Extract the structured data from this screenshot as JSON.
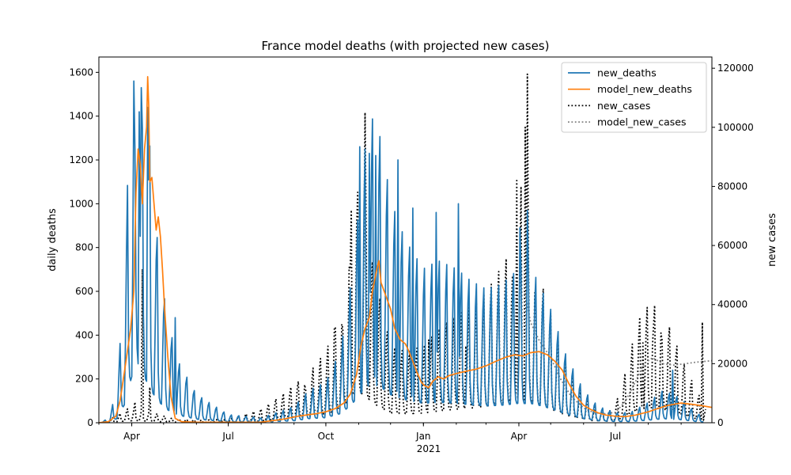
{
  "chart_data": {
    "type": "line",
    "title": "France model deaths (with projected new cases)",
    "xlabel_sub": "2021",
    "ylabel_left": "daily deaths",
    "ylabel_right": "new cases",
    "x_range": [
      "2020-03-01",
      "2021-09-30"
    ],
    "ylim_left": [
      0,
      1670
    ],
    "ylim_right": [
      0,
      123800
    ],
    "yticks_left": [
      0,
      200,
      400,
      600,
      800,
      1000,
      1200,
      1400,
      1600
    ],
    "yticks_right": [
      0,
      20000,
      40000,
      60000,
      80000,
      100000,
      120000
    ],
    "xticks": [
      {
        "date": "2020-04-01",
        "label": "Apr"
      },
      {
        "date": "2020-07-01",
        "label": "Jul"
      },
      {
        "date": "2020-10-01",
        "label": "Oct"
      },
      {
        "date": "2021-01-01",
        "label": "Jan"
      },
      {
        "date": "2021-04-01",
        "label": "Apr"
      },
      {
        "date": "2021-07-01",
        "label": "Jul"
      }
    ],
    "grid": false,
    "legend_position": "top-right",
    "series": [
      {
        "name": "new_deaths",
        "axis": "left",
        "color": "#1f77b4",
        "style": "solid",
        "kind": "oscillating",
        "start": "2020-03-01",
        "end": "2021-09-22",
        "profile": [
          [
            "2020-03-01",
            0
          ],
          [
            "2020-03-10",
            10
          ],
          [
            "2020-03-18",
            80
          ],
          [
            "2020-03-25",
            350
          ],
          [
            "2020-04-01",
            900
          ],
          [
            "2020-04-06",
            1200
          ],
          [
            "2020-04-10",
            1000
          ],
          [
            "2020-04-14",
            850
          ],
          [
            "2020-04-20",
            600
          ],
          [
            "2020-04-27",
            400
          ],
          [
            "2020-05-05",
            250
          ],
          [
            "2020-05-15",
            150
          ],
          [
            "2020-06-01",
            70
          ],
          [
            "2020-07-01",
            20
          ],
          [
            "2020-08-01",
            12
          ],
          [
            "2020-09-01",
            40
          ],
          [
            "2020-09-15",
            80
          ],
          [
            "2020-10-01",
            100
          ],
          [
            "2020-10-15",
            180
          ],
          [
            "2020-10-25",
            350
          ],
          [
            "2020-11-02",
            550
          ],
          [
            "2020-11-08",
            700
          ],
          [
            "2020-11-14",
            750
          ],
          [
            "2020-11-22",
            700
          ],
          [
            "2020-12-01",
            550
          ],
          [
            "2020-12-15",
            450
          ],
          [
            "2021-01-01",
            380
          ],
          [
            "2021-01-15",
            400
          ],
          [
            "2021-02-01",
            380
          ],
          [
            "2021-02-15",
            350
          ],
          [
            "2021-03-01",
            330
          ],
          [
            "2021-03-15",
            340
          ],
          [
            "2021-04-01",
            380
          ],
          [
            "2021-04-15",
            370
          ],
          [
            "2021-05-01",
            280
          ],
          [
            "2021-05-15",
            170
          ],
          [
            "2021-06-01",
            80
          ],
          [
            "2021-06-15",
            40
          ],
          [
            "2021-07-01",
            25
          ],
          [
            "2021-07-15",
            25
          ],
          [
            "2021-08-01",
            50
          ],
          [
            "2021-08-15",
            80
          ],
          [
            "2021-09-01",
            60
          ],
          [
            "2021-09-15",
            25
          ],
          [
            "2021-09-22",
            15
          ]
        ],
        "oscillation": 0.85,
        "spikes": [
          [
            "2020-04-04",
            1250
          ],
          [
            "2020-04-08",
            1420
          ],
          [
            "2020-04-11",
            1340
          ],
          [
            "2020-04-16",
            1440
          ],
          [
            "2020-05-12",
            480
          ],
          [
            "2020-11-02",
            1260
          ],
          [
            "2020-11-11",
            1230
          ],
          [
            "2020-11-17",
            1220
          ],
          [
            "2020-12-08",
            1200
          ],
          [
            "2020-12-22",
            980
          ],
          [
            "2021-01-13",
            960
          ],
          [
            "2021-02-03",
            1000
          ],
          [
            "2021-04-02",
            890
          ],
          [
            "2021-04-09",
            970
          ],
          [
            "2021-08-24",
            240
          ]
        ]
      },
      {
        "name": "model_new_deaths",
        "axis": "left",
        "color": "#ff7f0e",
        "style": "solid",
        "kind": "points",
        "points": [
          [
            "2020-03-01",
            0
          ],
          [
            "2020-03-10",
            5
          ],
          [
            "2020-03-17",
            30
          ],
          [
            "2020-03-21",
            100
          ],
          [
            "2020-03-25",
            230
          ],
          [
            "2020-03-28",
            330
          ],
          [
            "2020-03-31",
            430
          ],
          [
            "2020-04-03",
            600
          ],
          [
            "2020-04-05",
            1050
          ],
          [
            "2020-04-07",
            1250
          ],
          [
            "2020-04-09",
            1180
          ],
          [
            "2020-04-11",
            1000
          ],
          [
            "2020-04-13",
            1250
          ],
          [
            "2020-04-15",
            1350
          ],
          [
            "2020-04-16",
            1580
          ],
          [
            "2020-04-17",
            1450
          ],
          [
            "2020-04-18",
            1100
          ],
          [
            "2020-04-20",
            1120
          ],
          [
            "2020-04-22",
            1000
          ],
          [
            "2020-04-24",
            880
          ],
          [
            "2020-04-26",
            940
          ],
          [
            "2020-04-28",
            850
          ],
          [
            "2020-04-30",
            700
          ],
          [
            "2020-05-02",
            520
          ],
          [
            "2020-05-05",
            300
          ],
          [
            "2020-05-08",
            120
          ],
          [
            "2020-05-12",
            20
          ],
          [
            "2020-05-18",
            5
          ],
          [
            "2020-06-01",
            2
          ],
          [
            "2020-07-01",
            2
          ],
          [
            "2020-08-01",
            3
          ],
          [
            "2020-08-20",
            15
          ],
          [
            "2020-09-05",
            30
          ],
          [
            "2020-09-20",
            40
          ],
          [
            "2020-10-01",
            50
          ],
          [
            "2020-10-10",
            65
          ],
          [
            "2020-10-18",
            90
          ],
          [
            "2020-10-24",
            130
          ],
          [
            "2020-10-30",
            220
          ],
          [
            "2020-11-03",
            350
          ],
          [
            "2020-11-07",
            430
          ],
          [
            "2020-11-11",
            480
          ],
          [
            "2020-11-14",
            600
          ],
          [
            "2020-11-16",
            650
          ],
          [
            "2020-11-18",
            700
          ],
          [
            "2020-11-20",
            740
          ],
          [
            "2020-11-22",
            640
          ],
          [
            "2020-11-25",
            600
          ],
          [
            "2020-11-28",
            560
          ],
          [
            "2020-12-01",
            520
          ],
          [
            "2020-12-05",
            430
          ],
          [
            "2020-12-10",
            380
          ],
          [
            "2020-12-15",
            360
          ],
          [
            "2020-12-18",
            330
          ],
          [
            "2020-12-22",
            280
          ],
          [
            "2020-12-26",
            230
          ],
          [
            "2020-12-30",
            185
          ],
          [
            "2021-01-02",
            170
          ],
          [
            "2021-01-06",
            160
          ],
          [
            "2021-01-10",
            190
          ],
          [
            "2021-01-15",
            210
          ],
          [
            "2021-01-20",
            200
          ],
          [
            "2021-01-25",
            215
          ],
          [
            "2021-02-01",
            225
          ],
          [
            "2021-02-10",
            235
          ],
          [
            "2021-02-20",
            245
          ],
          [
            "2021-03-01",
            260
          ],
          [
            "2021-03-10",
            280
          ],
          [
            "2021-03-20",
            300
          ],
          [
            "2021-03-28",
            310
          ],
          [
            "2021-04-05",
            305
          ],
          [
            "2021-04-12",
            320
          ],
          [
            "2021-04-20",
            325
          ],
          [
            "2021-04-28",
            310
          ],
          [
            "2021-05-05",
            280
          ],
          [
            "2021-05-12",
            240
          ],
          [
            "2021-05-18",
            180
          ],
          [
            "2021-05-25",
            120
          ],
          [
            "2021-06-01",
            80
          ],
          [
            "2021-06-08",
            60
          ],
          [
            "2021-06-15",
            45
          ],
          [
            "2021-06-22",
            35
          ],
          [
            "2021-07-01",
            30
          ],
          [
            "2021-07-10",
            28
          ],
          [
            "2021-07-20",
            35
          ],
          [
            "2021-08-01",
            50
          ],
          [
            "2021-08-10",
            65
          ],
          [
            "2021-08-20",
            80
          ],
          [
            "2021-09-01",
            90
          ],
          [
            "2021-09-10",
            85
          ],
          [
            "2021-09-20",
            78
          ],
          [
            "2021-09-30",
            70
          ]
        ]
      },
      {
        "name": "new_cases",
        "axis": "right",
        "color": "#000000",
        "style": "dotted",
        "kind": "oscillating",
        "start": "2020-03-01",
        "end": "2021-09-24",
        "profile": [
          [
            "2020-03-01",
            0
          ],
          [
            "2020-03-15",
            1000
          ],
          [
            "2020-04-01",
            3000
          ],
          [
            "2020-04-20",
            2000
          ],
          [
            "2020-05-10",
            800
          ],
          [
            "2020-06-01",
            500
          ],
          [
            "2020-07-01",
            600
          ],
          [
            "2020-08-01",
            2500
          ],
          [
            "2020-08-20",
            5000
          ],
          [
            "2020-09-01",
            7000
          ],
          [
            "2020-09-15",
            9000
          ],
          [
            "2020-10-01",
            13000
          ],
          [
            "2020-10-15",
            20000
          ],
          [
            "2020-10-25",
            38000
          ],
          [
            "2020-11-01",
            45000
          ],
          [
            "2020-11-08",
            38000
          ],
          [
            "2020-11-15",
            28000
          ],
          [
            "2020-12-01",
            14000
          ],
          [
            "2020-12-15",
            13000
          ],
          [
            "2021-01-01",
            14000
          ],
          [
            "2021-01-20",
            18000
          ],
          [
            "2021-02-05",
            20000
          ],
          [
            "2021-02-20",
            22000
          ],
          [
            "2021-03-05",
            25000
          ],
          [
            "2021-03-20",
            30000
          ],
          [
            "2021-04-01",
            35000
          ],
          [
            "2021-04-10",
            32000
          ],
          [
            "2021-04-25",
            24000
          ],
          [
            "2021-05-10",
            14000
          ],
          [
            "2021-05-25",
            7000
          ],
          [
            "2021-06-10",
            3000
          ],
          [
            "2021-06-25",
            2000
          ],
          [
            "2021-07-05",
            5000
          ],
          [
            "2021-07-15",
            13000
          ],
          [
            "2021-07-25",
            20000
          ],
          [
            "2021-08-05",
            22000
          ],
          [
            "2021-08-20",
            18000
          ],
          [
            "2021-09-01",
            12000
          ],
          [
            "2021-09-15",
            6000
          ],
          [
            "2021-09-24",
            3000
          ]
        ],
        "oscillation": 0.85,
        "spikes": [
          [
            "2020-04-04",
            7000
          ],
          [
            "2020-04-11",
            52000
          ],
          [
            "2020-04-18",
            12000
          ],
          [
            "2020-09-12",
            11000
          ],
          [
            "2020-10-09",
            32000
          ],
          [
            "2020-10-17",
            32000
          ],
          [
            "2020-10-24",
            52000
          ],
          [
            "2020-10-25",
            72000
          ],
          [
            "2020-10-31",
            78000
          ],
          [
            "2020-11-07",
            105000
          ],
          [
            "2020-11-08",
            65000
          ],
          [
            "2021-01-06",
            28000
          ],
          [
            "2021-02-10",
            26000
          ],
          [
            "2021-03-25",
            40000
          ],
          [
            "2021-03-27",
            45000
          ],
          [
            "2021-03-30",
            82000
          ],
          [
            "2021-04-03",
            80000
          ],
          [
            "2021-04-07",
            100000
          ],
          [
            "2021-04-09",
            118000
          ],
          [
            "2021-04-17",
            38000
          ],
          [
            "2021-07-27",
            27000
          ],
          [
            "2021-08-05",
            26000
          ],
          [
            "2021-08-14",
            28000
          ],
          [
            "2021-09-21",
            34000
          ]
        ]
      },
      {
        "name": "model_new_cases",
        "axis": "right",
        "color": "#808080",
        "style": "dotted",
        "kind": "points",
        "points": [
          [
            "2021-04-07",
            44000
          ],
          [
            "2021-04-12",
            34000
          ],
          [
            "2021-04-20",
            28000
          ],
          [
            "2021-05-01",
            22000
          ],
          [
            "2021-05-10",
            15000
          ],
          [
            "2021-05-20",
            9000
          ],
          [
            "2021-06-01",
            5000
          ],
          [
            "2021-06-10",
            3500
          ],
          [
            "2021-06-20",
            3000
          ],
          [
            "2021-07-01",
            3500
          ],
          [
            "2021-07-10",
            7000
          ],
          [
            "2021-07-20",
            14000
          ],
          [
            "2021-07-28",
            20000
          ],
          [
            "2021-08-05",
            22000
          ],
          [
            "2021-08-15",
            20000
          ],
          [
            "2021-08-25",
            19500
          ],
          [
            "2021-09-05",
            20000
          ],
          [
            "2021-09-15",
            20500
          ],
          [
            "2021-09-30",
            21000
          ]
        ]
      }
    ]
  }
}
